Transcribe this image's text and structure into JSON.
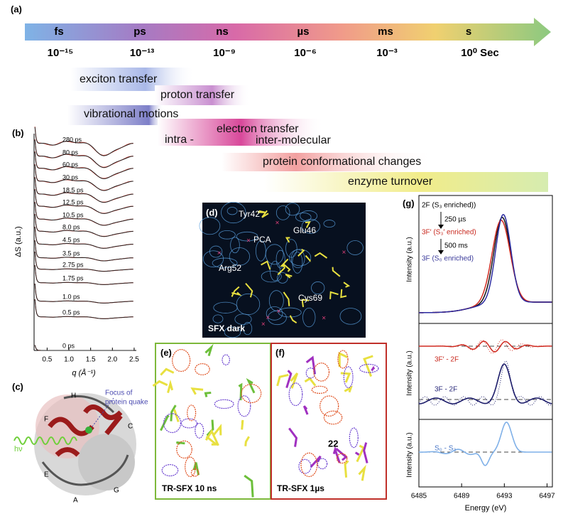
{
  "panel_a": {
    "label": "(a)",
    "units": [
      "fs",
      "ps",
      "ns",
      "µs",
      "ms",
      "s"
    ],
    "powers": [
      "10⁻¹⁵",
      "10⁻¹³",
      "10⁻⁹",
      "10⁻⁶",
      "10⁻³",
      "10⁰ Sec"
    ],
    "processes": [
      "exciton transfer",
      "proton transfer",
      "vibrational motions",
      "intra -",
      "electron transfer",
      "inter-molecular",
      "protein conformational changes",
      "enzyme turnover"
    ]
  },
  "panel_b": {
    "label": "(b)",
    "y_label": "ΔS (a.u.)",
    "x_label": "q (Å⁻¹)",
    "xlim": [
      0.2,
      2.55
    ],
    "xticks": [
      0.5,
      {
        "value": 1,
        "label": "1.0"
      },
      1.5,
      {
        "value": 2,
        "label": "2.0"
      },
      2.5
    ],
    "curve_labels": [
      "280 ps",
      "80 ps",
      "60 ps",
      "30 ps",
      "18.5 ps",
      "12.5 ps",
      "10.5 ps",
      "8.0 ps",
      "4.5 ps",
      "3.5 ps",
      "2.75 ps",
      "1.75 ps",
      "1.0 ps",
      "0.5 ps",
      "0 ps"
    ]
  },
  "panel_c": {
    "label": "(c)",
    "annotation": [
      "Focus of",
      "protein quake"
    ],
    "light": "hν",
    "helix_labels": [
      "H",
      "F",
      "C",
      "E",
      "A",
      "G"
    ]
  },
  "panel_d": {
    "label": "(d)",
    "residues": [
      "Tyr42",
      "PCA",
      "Glu46",
      "Arg52",
      "Cys69"
    ],
    "caption": "SFX dark"
  },
  "panel_e": {
    "label": "(e)",
    "caption": "TR-SFX 10 ns"
  },
  "panel_f": {
    "label": "(f)",
    "caption": "TR-SFX 1µs",
    "annotation": "22"
  },
  "panel_g": {
    "label": "(g)",
    "y_label": "Intensity (a.u.)",
    "x_label": "Energy (eV)",
    "xlim": [
      6485,
      6497.5
    ],
    "xticks": [
      6485,
      6489,
      6493,
      6497
    ],
    "top_labels": [
      "2F (S₃ enriched))",
      "250 µs",
      "3F′ (S₃′ enriched)",
      "500 ms",
      "3F (S₀ enriched)"
    ],
    "diff_labels": [
      "3F′ - 2F",
      "3F - 2F",
      "S₀ - S₃"
    ]
  }
}
